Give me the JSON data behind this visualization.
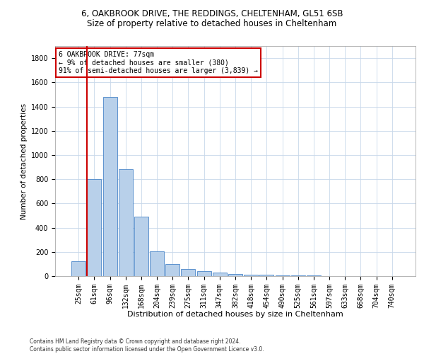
{
  "title1": "6, OAKBROOK DRIVE, THE REDDINGS, CHELTENHAM, GL51 6SB",
  "title2": "Size of property relative to detached houses in Cheltenham",
  "xlabel": "Distribution of detached houses by size in Cheltenham",
  "ylabel": "Number of detached properties",
  "categories": [
    "25sqm",
    "61sqm",
    "96sqm",
    "132sqm",
    "168sqm",
    "204sqm",
    "239sqm",
    "275sqm",
    "311sqm",
    "347sqm",
    "382sqm",
    "418sqm",
    "454sqm",
    "490sqm",
    "525sqm",
    "561sqm",
    "597sqm",
    "633sqm",
    "668sqm",
    "704sqm",
    "740sqm"
  ],
  "values": [
    120,
    800,
    1480,
    880,
    490,
    205,
    100,
    60,
    40,
    28,
    20,
    13,
    9,
    6,
    4,
    3,
    2,
    2,
    1,
    1,
    1
  ],
  "bar_color": "#b8d0ea",
  "bar_edge_color": "#4a86c8",
  "vline_index": 1,
  "vline_color": "#cc0000",
  "annotation_line1": "6 OAKBROOK DRIVE: 77sqm",
  "annotation_line2": "← 9% of detached houses are smaller (380)",
  "annotation_line3": "91% of semi-detached houses are larger (3,839) →",
  "annotation_box_color": "#ffffff",
  "annotation_box_edge": "#cc0000",
  "ylim": [
    0,
    1900
  ],
  "yticks": [
    0,
    200,
    400,
    600,
    800,
    1000,
    1200,
    1400,
    1600,
    1800
  ],
  "footer": "Contains HM Land Registry data © Crown copyright and database right 2024.\nContains public sector information licensed under the Open Government Licence v3.0.",
  "bg_color": "#ffffff",
  "grid_color": "#c8d8ea",
  "title1_fontsize": 8.5,
  "title2_fontsize": 8.5,
  "xlabel_fontsize": 8,
  "ylabel_fontsize": 7.5,
  "tick_fontsize": 7,
  "annot_fontsize": 7,
  "footer_fontsize": 5.5
}
